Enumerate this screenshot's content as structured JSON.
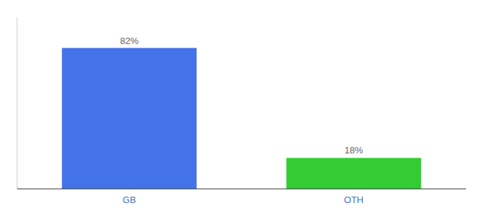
{
  "chart_data": {
    "type": "bar",
    "categories": [
      "GB",
      "OTH"
    ],
    "values": [
      82,
      18
    ],
    "value_labels": [
      "82%",
      "18%"
    ],
    "colors": [
      "#4472e8",
      "#33cc33"
    ],
    "ylim": [
      0,
      100
    ],
    "data_labels": true,
    "tick_labels": "x"
  }
}
